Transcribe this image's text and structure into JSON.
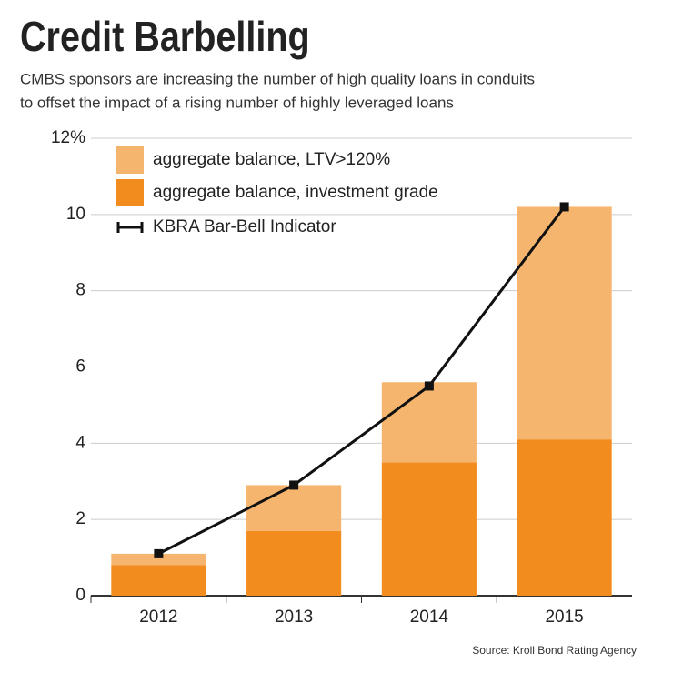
{
  "chart_data": {
    "type": "bar",
    "title": "Credit Barbelling",
    "subtitle": [
      "CMBS sponsors are increasing the number of high quality loans in conduits",
      "to offset the impact of a rising number of highly leveraged loans"
    ],
    "source": "Source: Kroll Bond Rating Agency",
    "categories": [
      "2012",
      "2013",
      "2014",
      "2015"
    ],
    "series": [
      {
        "name": "aggregate balance, LTV>120%",
        "type": "bar",
        "color": "#f6b56e",
        "values": [
          0.3,
          1.2,
          2.1,
          6.1
        ]
      },
      {
        "name": "aggregate balance, investment grade",
        "type": "bar",
        "color": "#f28c1e",
        "values": [
          0.8,
          1.7,
          3.5,
          4.1
        ]
      },
      {
        "name": "KBRA Bar-Bell Indicator",
        "type": "line",
        "color": "#111111",
        "values": [
          1.1,
          2.9,
          5.5,
          10.2
        ]
      }
    ],
    "stacked": true,
    "ylim": [
      0,
      12
    ],
    "yticks": [
      0,
      2,
      4,
      6,
      8,
      10,
      {
        "value": 12,
        "label": "12%"
      }
    ],
    "grid": true
  }
}
